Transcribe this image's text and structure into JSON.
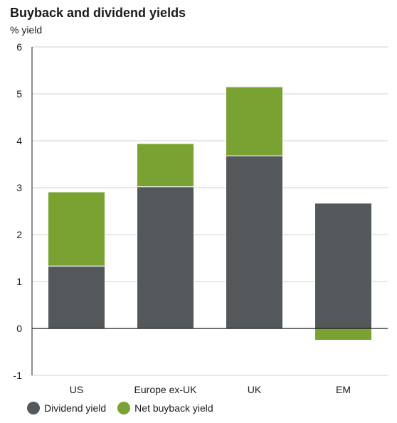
{
  "chart_data": {
    "type": "bar",
    "stacked": true,
    "title": "Buyback and dividend yields",
    "ylabel": "% yield",
    "categories": [
      "US",
      "Europe ex-UK",
      "UK",
      "EM"
    ],
    "series": [
      {
        "name": "Dividend yield",
        "color": "#54585a",
        "values": [
          1.33,
          3.02,
          3.68,
          2.67
        ]
      },
      {
        "name": "Net buyback yield",
        "color": "#7aa232",
        "values": [
          1.58,
          0.92,
          1.47,
          -0.25
        ]
      }
    ],
    "ylim": [
      -1,
      6
    ],
    "yticks": [
      -1,
      0,
      1,
      2,
      3,
      4,
      5,
      6
    ],
    "grid": true,
    "legend": "bottom-left"
  }
}
